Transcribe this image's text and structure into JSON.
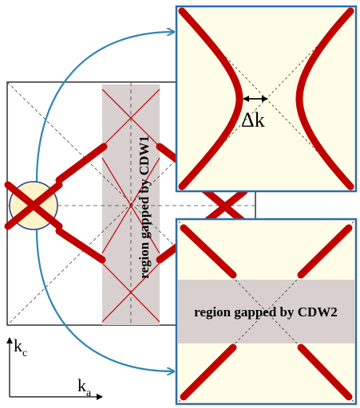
{
  "labels": {
    "region_cdw1": "region gapped by CDW1",
    "region_cdw2": "region gapped by CDW2",
    "gap_delta": "Δk",
    "axis_kc": "k",
    "axis_kc_sub": "c",
    "axis_ka": "k",
    "axis_ka_sub": "a"
  },
  "colors": {
    "fermi_surface": "#c00000",
    "panel_border": "#2e6da4",
    "panel_fill": "#fffde8",
    "gap_band": "#d8cfcf",
    "arrow": "#2e86b0",
    "highlight_circle_fill": "#fff2c8",
    "highlight_circle_stroke": "#1f3f8f"
  }
}
